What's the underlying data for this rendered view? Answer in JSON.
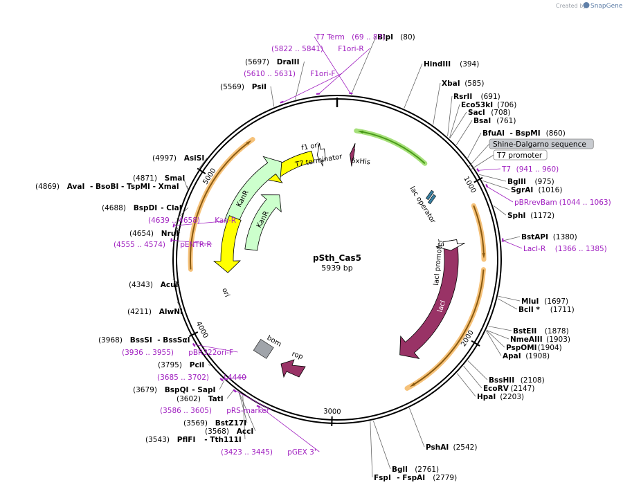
{
  "credit": {
    "prefix": "Created by",
    "brand": "SnapGene"
  },
  "plasmid": {
    "name": "pSth_Cas5",
    "length_label": "5939 bp",
    "length": 5939
  },
  "ticks": [
    "1000",
    "2000",
    "3000",
    "4000",
    "5000"
  ],
  "features": {
    "f1ori": "f1 ori",
    "kanr_outer": "KanR",
    "kanr_inner": "KanR",
    "ori": "ori",
    "laci": "lacI",
    "laci_promoter": "lacI promoter",
    "lac_operator": "lac operator",
    "t7_terminator": "T7 terminator",
    "his": "6xHis",
    "bom": "bom",
    "rop": "rop"
  },
  "sites": [
    {
      "pos": 80,
      "name": "BlpI",
      "num": "(80)"
    },
    {
      "pos": 394,
      "name": "HindIII",
      "num": "(394)"
    },
    {
      "pos": 585,
      "name": "XbaI",
      "num": "(585)"
    },
    {
      "pos": 691,
      "name": "RsrII",
      "num": "(691)"
    },
    {
      "pos": 706,
      "name": "Eco53kI",
      "num": "(706)"
    },
    {
      "pos": 708,
      "name": "SacI",
      "num": "(708)"
    },
    {
      "pos": 761,
      "name": "BsaI",
      "num": "(761)"
    },
    {
      "pos": 860,
      "name": "BfuAI",
      "name2": "- BspMI",
      "num": "(860)"
    },
    {
      "pos": 975,
      "name": "BglII",
      "num": "(975)"
    },
    {
      "pos": 1016,
      "name": "SgrAI",
      "num": "(1016)"
    },
    {
      "pos": 1172,
      "name": "SphI",
      "num": "(1172)"
    },
    {
      "pos": 1380,
      "name": "BstAPI",
      "num": "(1380)"
    },
    {
      "pos": 1697,
      "name": "MluI",
      "num": "(1697)"
    },
    {
      "pos": 1711,
      "name": "BclI *",
      "num": "(1711)"
    },
    {
      "pos": 1878,
      "name": "BstEII",
      "num": "(1878)"
    },
    {
      "pos": 1903,
      "name": "NmeAIII",
      "num": "(1903)"
    },
    {
      "pos": 1904,
      "name": "PspOMI",
      "num": "(1904)"
    },
    {
      "pos": 1908,
      "name": "ApaI",
      "num": "(1908)"
    },
    {
      "pos": 2108,
      "name": "BssHII",
      "num": "(2108)"
    },
    {
      "pos": 2147,
      "name": "EcoRV",
      "num": "(2147)"
    },
    {
      "pos": 2203,
      "name": "HpaI",
      "num": "(2203)"
    },
    {
      "pos": 2542,
      "name": "PshAI",
      "num": "(2542)"
    },
    {
      "pos": 2761,
      "name": "BglI",
      "num": "(2761)"
    },
    {
      "pos": 2779,
      "name": "FspI",
      "name2": "- FspAI",
      "num": "(2779)"
    },
    {
      "pos": 3543,
      "name": "PflFI",
      "name2": "- Tth111I",
      "num": "(3543)"
    },
    {
      "pos": 3568,
      "name": "AccI",
      "num": "(3568)"
    },
    {
      "pos": 3569,
      "name": "BstZ17I",
      "num": "(3569)"
    },
    {
      "pos": 3602,
      "name": "TatI",
      "num": "(3602)"
    },
    {
      "pos": 3679,
      "name": "BspQI",
      "name2": "- SapI",
      "num": "(3679)"
    },
    {
      "pos": 3795,
      "name": "PciI",
      "num": "(3795)"
    },
    {
      "pos": 3968,
      "name": "BssSI",
      "name2": "- BssSαI",
      "num": "(3968)"
    },
    {
      "pos": 4211,
      "name": "AlwNI",
      "num": "(4211)"
    },
    {
      "pos": 4343,
      "name": "AcuI",
      "num": "(4343)"
    },
    {
      "pos": 4654,
      "name": "NruI",
      "num": "(4654)"
    },
    {
      "pos": 4688,
      "name": "BspDI",
      "name2": "- ClaI",
      "num": "(4688)"
    },
    {
      "pos": 4869,
      "name": "AvaI",
      "name2": "- BsoBI - TspMI - XmaI",
      "num": "(4869)"
    },
    {
      "pos": 4871,
      "name": "SmaI",
      "num": "(4871)"
    },
    {
      "pos": 4997,
      "name": "AsiSI",
      "num": "(4997)"
    },
    {
      "pos": 5569,
      "name": "PsiI",
      "num": "(5569)"
    },
    {
      "pos": 5697,
      "name": "DraIII",
      "num": "(5697)"
    }
  ],
  "primers": [
    {
      "pos": 78,
      "name": "T7 Term",
      "num": "(69 .. 87)"
    },
    {
      "pos": 5831,
      "name": "F1ori-R",
      "num": "(5822 .. 5841)"
    },
    {
      "pos": 5620,
      "name": "F1ori-F",
      "num": "(5610 .. 5631)"
    },
    {
      "pos": 950,
      "name": "T7",
      "num": "(941 .. 960)"
    },
    {
      "pos": 1053,
      "name": "pBRrevBam",
      "num": "(1044 .. 1063)"
    },
    {
      "pos": 1375,
      "name": "LacI-R",
      "num": "(1366 .. 1385)"
    },
    {
      "pos": 4648,
      "name": "Kan-R",
      "num": "(4639 .. 4658)"
    },
    {
      "pos": 4564,
      "name": "pENTR-R",
      "num": "(4555 .. 4574)"
    },
    {
      "pos": 3945,
      "name": "pBR322ori-F",
      "num": "(3936 .. 3955)"
    },
    {
      "pos": 3693,
      "name": "L4440",
      "num": "(3685 .. 3702)"
    },
    {
      "pos": 3595,
      "name": "pRS-marker",
      "num": "(3586 .. 3605)"
    },
    {
      "pos": 3434,
      "name": "pGEX 3'",
      "num": "(3423 .. 3445)"
    }
  ],
  "boxed_labels": [
    {
      "pos": 905,
      "name": "Shine-Dalgarno sequence",
      "style": "gray"
    },
    {
      "pos": 925,
      "name": "T7 promoter",
      "style": "white"
    }
  ],
  "colors": {
    "f1ori": "#ffff00",
    "kanr": "#ccffcc",
    "ori": "#ffff00",
    "laci": "#993366",
    "rop": "#993366",
    "bom": "#a0a4aa",
    "halo_orange": "#f6c27a",
    "halo_green": "#a6e07a",
    "primer": "#a020c0"
  }
}
